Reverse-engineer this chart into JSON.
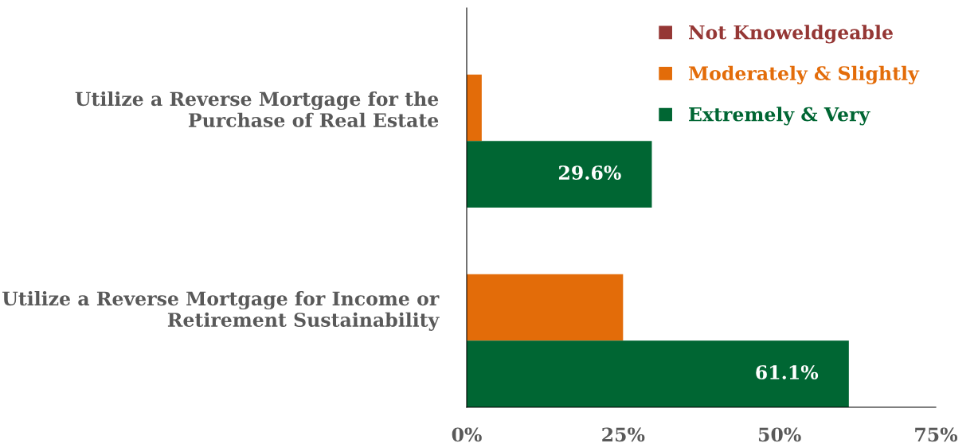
{
  "chart_data": {
    "type": "bar",
    "orientation": "horizontal",
    "categories": [
      "Utilize a Reverse Mortgage for the Purchase of Real Estate",
      "Utilize a Reverse Mortgage for Income or Retirement Sustainability"
    ],
    "series": [
      {
        "name": "Not Knoweldgeable",
        "color": "#953735",
        "values": [
          null,
          null
        ]
      },
      {
        "name": "Moderately & Slightly",
        "color": "#e36c09",
        "values": [
          2.4,
          25.0
        ]
      },
      {
        "name": "Extremely & Very",
        "color": "#006633",
        "values": [
          29.6,
          61.1
        ],
        "value_labels": [
          "29.6%",
          "61.1%"
        ]
      }
    ],
    "xlim": [
      0,
      75
    ],
    "xticks": [
      {
        "value": 0,
        "label": "0%"
      },
      {
        "value": 25,
        "label": "25%"
      },
      {
        "value": 50,
        "label": "50%"
      },
      {
        "value": 75,
        "label": "75%"
      }
    ],
    "grid": false,
    "legend": "top right"
  }
}
